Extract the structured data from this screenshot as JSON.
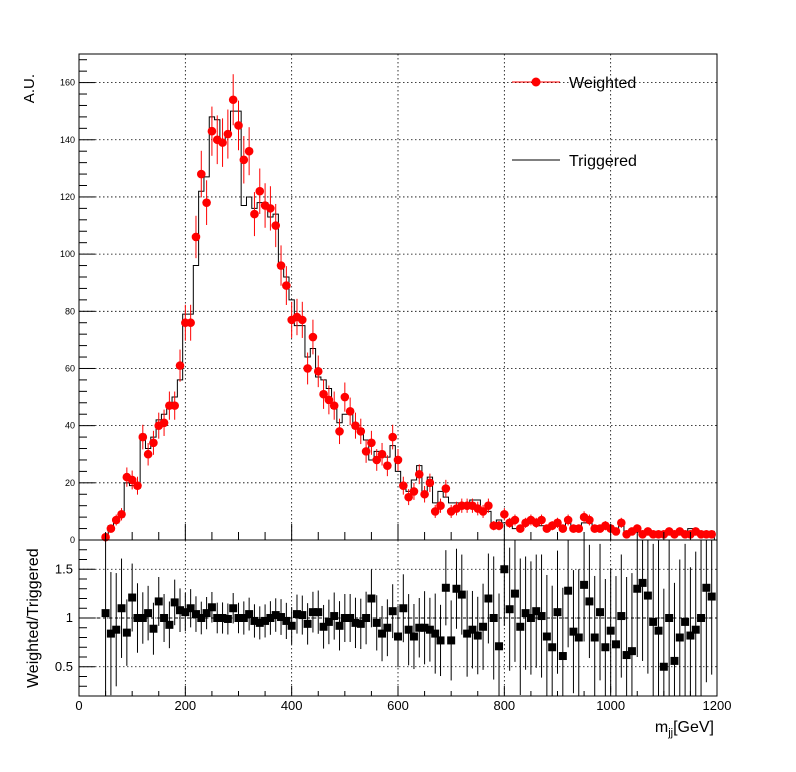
{
  "chart_data": [
    {
      "type": "line",
      "ylabel": "A.U.",
      "xlim": [
        0,
        1200
      ],
      "ylim": [
        0,
        170
      ],
      "grid": true,
      "legend_position": "top-right",
      "yticks": [
        0,
        20,
        40,
        60,
        80,
        100,
        120,
        140,
        160
      ],
      "x": [
        50,
        60,
        70,
        80,
        90,
        100,
        110,
        120,
        130,
        140,
        150,
        160,
        170,
        180,
        190,
        200,
        210,
        220,
        230,
        240,
        250,
        260,
        270,
        280,
        290,
        300,
        310,
        320,
        330,
        340,
        350,
        360,
        370,
        380,
        390,
        400,
        410,
        420,
        430,
        440,
        450,
        460,
        470,
        480,
        490,
        500,
        510,
        520,
        530,
        540,
        550,
        560,
        570,
        580,
        590,
        600,
        610,
        620,
        630,
        640,
        650,
        660,
        670,
        680,
        690,
        700,
        710,
        720,
        730,
        740,
        750,
        760,
        770,
        780,
        790,
        800,
        810,
        820,
        830,
        840,
        850,
        860,
        870,
        880,
        890,
        900,
        910,
        920,
        930,
        940,
        950,
        960,
        970,
        980,
        990,
        1000,
        1010,
        1020,
        1030,
        1040,
        1050,
        1060,
        1070,
        1080,
        1090,
        1100,
        1110,
        1120,
        1130,
        1140,
        1150,
        1160,
        1170,
        1180,
        1190
      ],
      "series": [
        {
          "name": "Weighted",
          "color": "#ff0000",
          "marker": "circle",
          "values": [
            1,
            4,
            7,
            9,
            22,
            21,
            19,
            36,
            30,
            34,
            40,
            41,
            47,
            47,
            61,
            76,
            76,
            106,
            128,
            118,
            143,
            140,
            139,
            142,
            154,
            145,
            133,
            136,
            114,
            122,
            117,
            116,
            110,
            96,
            89,
            77,
            78,
            77,
            60,
            71,
            59,
            51,
            49,
            47,
            38,
            50,
            45,
            40,
            38,
            31,
            34,
            28,
            30,
            26,
            36,
            28,
            19,
            15,
            17,
            23,
            16,
            20,
            10,
            12,
            18,
            10,
            11,
            12,
            12,
            12,
            11,
            10,
            12,
            5,
            5,
            9,
            6,
            7,
            4,
            6,
            7,
            6,
            7,
            4,
            5,
            6,
            4,
            7,
            4,
            4,
            8,
            7,
            4,
            4,
            5,
            4,
            3,
            6,
            2,
            3,
            4,
            2,
            3,
            2,
            2,
            2,
            3,
            2,
            3,
            2,
            2,
            3,
            2,
            2,
            2
          ]
        },
        {
          "name": "Triggered",
          "color": "#000000",
          "values": [
            1,
            5,
            6,
            8,
            20,
            19,
            18,
            37,
            32,
            36,
            42,
            44,
            47,
            50,
            56,
            79,
            79,
            96,
            122,
            127,
            148,
            147,
            140,
            142,
            150,
            150,
            117,
            120,
            116,
            118,
            118,
            113,
            114,
            95,
            92,
            84,
            75,
            75,
            64,
            67,
            57,
            56,
            53,
            46,
            41,
            44,
            44,
            39,
            39,
            35,
            28,
            31,
            31,
            29,
            33,
            24,
            19,
            17,
            21,
            26,
            16,
            22,
            13,
            17,
            15,
            13,
            13,
            13,
            11,
            14,
            14,
            11,
            10,
            5,
            7,
            6,
            5,
            4,
            4,
            6,
            6,
            6,
            5,
            5,
            5,
            5,
            4,
            6,
            5,
            4,
            6,
            6,
            5,
            4,
            4,
            5,
            4,
            5,
            3,
            3,
            4,
            3,
            3,
            3,
            2,
            3,
            3,
            3,
            3,
            3,
            4,
            3,
            3,
            2,
            3
          ]
        }
      ]
    },
    {
      "type": "scatter",
      "xlabel": "m",
      "xlabel_subscript": "jj",
      "xlabel_suffix": "[GeV]",
      "ylabel": "Weighted/Triggered",
      "xlim": [
        0,
        1200
      ],
      "ylim": [
        0.2,
        1.8
      ],
      "grid": true,
      "xticks": [
        0,
        200,
        400,
        600,
        800,
        1000,
        1200
      ],
      "yticks": [
        0.5,
        1,
        1.5
      ],
      "ytick_labels": [
        "0.5",
        "1",
        "1.5"
      ],
      "reference_line": 1,
      "series": [
        {
          "name": "Weighted/Triggered",
          "color": "#000000",
          "marker": "square",
          "values": [
            1.05,
            0.84,
            0.88,
            1.1,
            0.85,
            1.21,
            1.0,
            1.0,
            1.05,
            0.89,
            1.17,
            1.0,
            0.93,
            1.16,
            1.08,
            1.06,
            1.1,
            1.04,
            1.0,
            1.05,
            1.11,
            1.0,
            1.0,
            0.99,
            1.1,
            1.0,
            1.0,
            1.04,
            0.97,
            0.95,
            0.97,
            1.0,
            1.03,
            1.01,
            0.97,
            0.92,
            1.04,
            1.03,
            0.94,
            1.06,
            1.06,
            0.91,
            0.96,
            1.02,
            0.92,
            1.0,
            1.0,
            0.95,
            0.94,
            1.0,
            1.2,
            0.95,
            0.84,
            0.9,
            1.07,
            0.81,
            1.1,
            0.88,
            0.81,
            0.9,
            0.9,
            0.88,
            0.84,
            0.77,
            1.31,
            0.77,
            1.3,
            1.24,
            0.84,
            0.88,
            0.82,
            0.91,
            1.2,
            1.0,
            0.71,
            1.5,
            1.09,
            1.25,
            0.91,
            1.05,
            1.0,
            1.07,
            1.02,
            0.81,
            0.7,
            1.06,
            0.61,
            1.28,
            0.86,
            0.8,
            1.34,
            1.17,
            0.8,
            1.06,
            0.7,
            0.87,
            0.73,
            1.02,
            0.62,
            0.66,
            1.3,
            1.36,
            1.23,
            0.96,
            0.87,
            0.5,
            1.0,
            0.56,
            0.8,
            0.96,
            0.82,
            0.88,
            1.0,
            1.31,
            1.22
          ]
        }
      ]
    }
  ]
}
